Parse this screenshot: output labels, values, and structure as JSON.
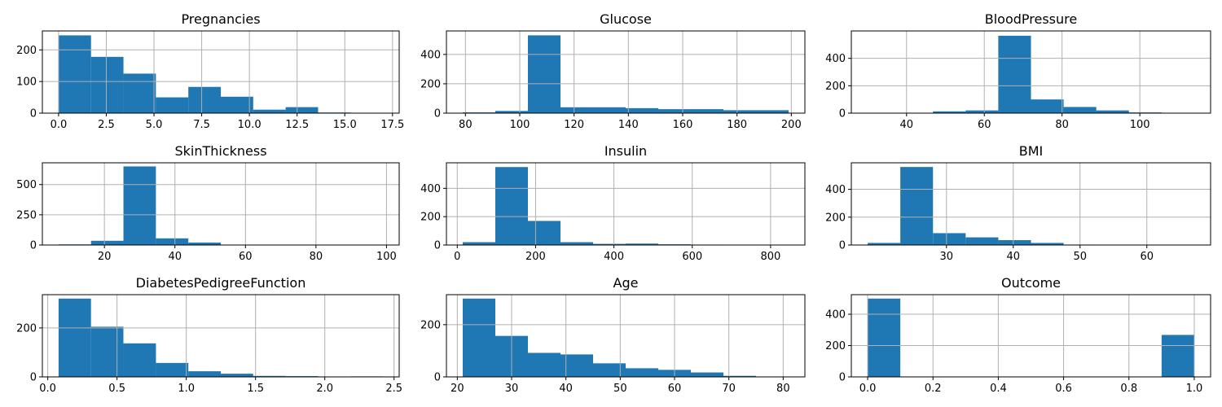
{
  "colors": {
    "bar": "#1f77b4",
    "grid": "#b0b0b0",
    "axis": "#000000"
  },
  "chart_data": [
    {
      "type": "bar",
      "title": "Pregnancies",
      "bin_edges": [
        0,
        1.7,
        3.4,
        5.1,
        6.8,
        8.5,
        10.2,
        11.9,
        13.6,
        15.3,
        17
      ],
      "values": [
        246,
        178,
        125,
        50,
        83,
        52,
        11,
        19,
        2,
        1
      ],
      "xlim": [
        -0.85,
        17.85
      ],
      "ylim": [
        0,
        260
      ],
      "xticks": [
        0,
        2.5,
        5,
        7.5,
        10,
        12.5,
        15,
        17.5
      ],
      "xtick_labels": [
        "0.0",
        "2.5",
        "5.0",
        "7.5",
        "10.0",
        "12.5",
        "15.0",
        "17.5"
      ],
      "yticks": [
        0,
        100,
        200
      ],
      "ytick_labels": [
        "0",
        "100",
        "200"
      ],
      "grid": true
    },
    {
      "type": "bar",
      "title": "Glucose",
      "bin_edges": [
        79,
        91,
        103,
        115,
        127,
        139,
        151,
        163,
        175,
        187,
        199
      ],
      "values": [
        5,
        15,
        530,
        40,
        40,
        34,
        27,
        27,
        20,
        20
      ],
      "xlim": [
        73,
        205
      ],
      "ylim": [
        0,
        560
      ],
      "xticks": [
        80,
        100,
        120,
        140,
        160,
        180,
        200
      ],
      "xtick_labels": [
        "80",
        "100",
        "120",
        "140",
        "160",
        "180",
        "200"
      ],
      "yticks": [
        0,
        200,
        400
      ],
      "ytick_labels": [
        "0",
        "200",
        "400"
      ],
      "grid": true
    },
    {
      "type": "bar",
      "title": "BloodPressure",
      "bin_edges": [
        30,
        38.4,
        46.8,
        55.2,
        63.6,
        72,
        80.4,
        88.8,
        97.2,
        105.6,
        114
      ],
      "values": [
        1,
        2,
        13,
        20,
        565,
        100,
        45,
        20,
        5,
        2
      ],
      "xlim": [
        25.8,
        118.2
      ],
      "ylim": [
        0,
        600
      ],
      "xticks": [
        40,
        60,
        80,
        100
      ],
      "xtick_labels": [
        "40",
        "60",
        "80",
        "100"
      ],
      "yticks": [
        0,
        200,
        400
      ],
      "ytick_labels": [
        "0",
        "200",
        "400"
      ],
      "grid": true
    },
    {
      "type": "bar",
      "title": "SkinThickness",
      "bin_edges": [
        7,
        16.2,
        25.4,
        34.6,
        43.8,
        53,
        62.2,
        71.4,
        80.6,
        89.8,
        99
      ],
      "values": [
        5,
        35,
        650,
        55,
        20,
        3,
        1,
        0,
        0,
        1
      ],
      "xlim": [
        2.4,
        103.6
      ],
      "ylim": [
        0,
        680
      ],
      "xticks": [
        20,
        40,
        60,
        80,
        100
      ],
      "xtick_labels": [
        "20",
        "40",
        "60",
        "80",
        "100"
      ],
      "yticks": [
        0,
        250,
        500
      ],
      "ytick_labels": [
        "0",
        "250",
        "500"
      ],
      "grid": true
    },
    {
      "type": "bar",
      "title": "Insulin",
      "bin_edges": [
        14,
        97.2,
        180.4,
        263.6,
        346.8,
        430,
        513.2,
        596.4,
        679.6,
        762.8,
        846
      ],
      "values": [
        20,
        550,
        170,
        20,
        8,
        10,
        5,
        3,
        1,
        1
      ],
      "xlim": [
        -27.6,
        887.6
      ],
      "ylim": [
        0,
        580
      ],
      "xticks": [
        0,
        200,
        400,
        600,
        800
      ],
      "xtick_labels": [
        "0",
        "200",
        "400",
        "600",
        "800"
      ],
      "yticks": [
        0,
        200,
        400
      ],
      "ytick_labels": [
        "0",
        "200",
        "400"
      ],
      "grid": true
    },
    {
      "type": "bar",
      "title": "BMI",
      "bin_edges": [
        18.2,
        23.09,
        27.98,
        32.87,
        37.76,
        42.65,
        47.54,
        52.43,
        57.32,
        62.21,
        67.1
      ],
      "values": [
        15,
        560,
        85,
        55,
        35,
        15,
        3,
        2,
        1,
        1
      ],
      "xlim": [
        15.755,
        69.545
      ],
      "ylim": [
        0,
        590
      ],
      "xticks": [
        30,
        40,
        50,
        60
      ],
      "xtick_labels": [
        "30",
        "40",
        "50",
        "60"
      ],
      "yticks": [
        0,
        200,
        400
      ],
      "ytick_labels": [
        "0",
        "200",
        "400"
      ],
      "grid": true
    },
    {
      "type": "bar",
      "title": "DiabetesPedigreeFunction",
      "bin_edges": [
        0.078,
        0.312,
        0.546,
        0.781,
        1.015,
        1.249,
        1.483,
        1.718,
        1.952,
        2.186,
        2.42
      ],
      "values": [
        320,
        205,
        137,
        57,
        23,
        13,
        4,
        3,
        0,
        2
      ],
      "xlim": [
        -0.039,
        2.537
      ],
      "ylim": [
        0,
        336
      ],
      "xticks": [
        0,
        0.5,
        1,
        1.5,
        2,
        2.5
      ],
      "xtick_labels": [
        "0.0",
        "0.5",
        "1.0",
        "1.5",
        "2.0",
        "2.5"
      ],
      "yticks": [
        0,
        200
      ],
      "ytick_labels": [
        "0",
        "200"
      ],
      "grid": true
    },
    {
      "type": "bar",
      "title": "Age",
      "bin_edges": [
        21,
        27,
        33,
        39,
        45,
        51,
        57,
        63,
        69,
        75,
        81
      ],
      "values": [
        300,
        157,
        92,
        86,
        52,
        33,
        27,
        17,
        4,
        1
      ],
      "xlim": [
        18,
        84
      ],
      "ylim": [
        0,
        315
      ],
      "xticks": [
        20,
        30,
        40,
        50,
        60,
        70,
        80
      ],
      "xtick_labels": [
        "20",
        "30",
        "40",
        "50",
        "60",
        "70",
        "80"
      ],
      "yticks": [
        0,
        200
      ],
      "ytick_labels": [
        "0",
        "200"
      ],
      "grid": true
    },
    {
      "type": "bar",
      "title": "Outcome",
      "bin_edges": [
        0,
        0.1,
        0.2,
        0.3,
        0.4,
        0.5,
        0.6,
        0.7,
        0.8,
        0.9,
        1.0
      ],
      "values": [
        500,
        0,
        0,
        0,
        0,
        0,
        0,
        0,
        0,
        268
      ],
      "xlim": [
        -0.05,
        1.05
      ],
      "ylim": [
        0,
        525
      ],
      "xticks": [
        0,
        0.2,
        0.4,
        0.6,
        0.8,
        1.0
      ],
      "xtick_labels": [
        "0.0",
        "0.2",
        "0.4",
        "0.6",
        "0.8",
        "1.0"
      ],
      "yticks": [
        0,
        200,
        400
      ],
      "ytick_labels": [
        "0",
        "200",
        "400"
      ],
      "grid": true
    }
  ]
}
